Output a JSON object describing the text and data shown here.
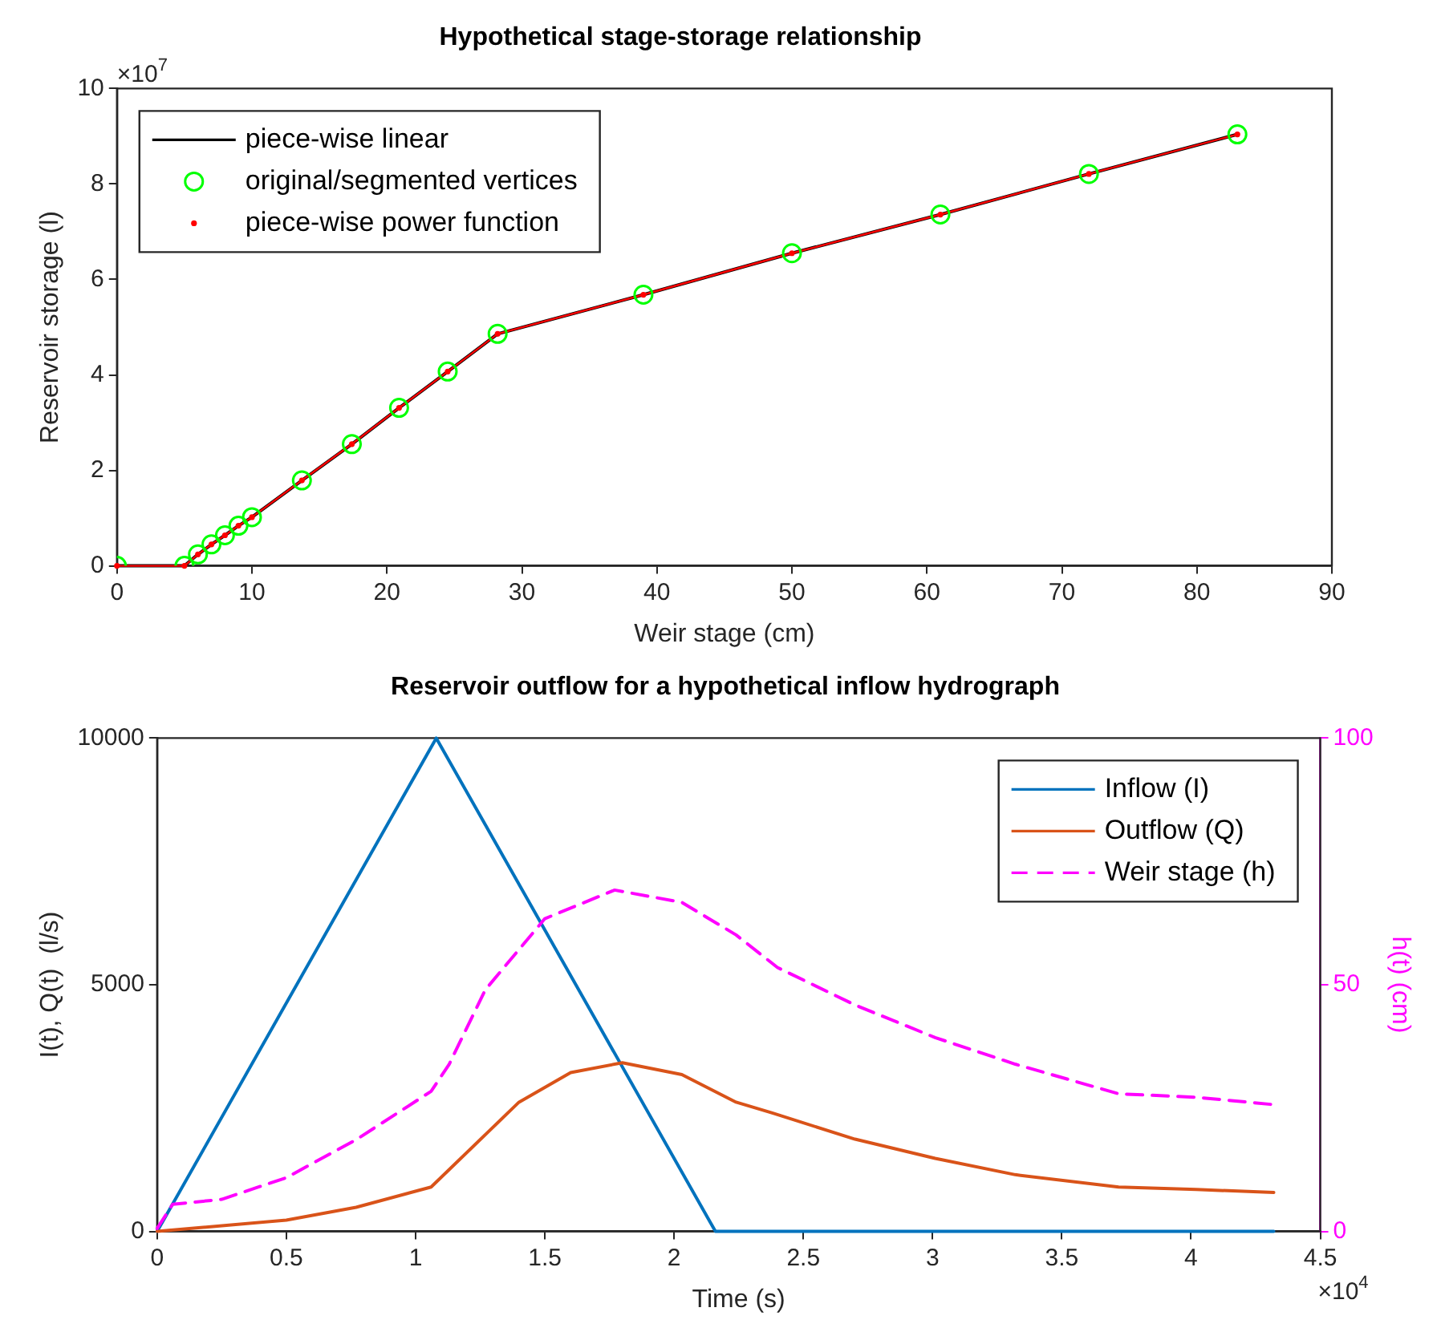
{
  "chart_data": [
    {
      "type": "line",
      "title": "Hypothetical stage-storage relationship",
      "xlabel": "Weir stage (cm)",
      "ylabel": "Reservoir storage (l)",
      "xlim": [
        0,
        90
      ],
      "xticks": [
        0,
        10,
        20,
        30,
        40,
        50,
        60,
        70,
        80,
        90
      ],
      "ylim": [
        0,
        10
      ],
      "yticks": [
        0,
        2,
        4,
        6,
        8,
        10
      ],
      "annotations": [
        "×10$^{7}$"
      ],
      "legend": "top left",
      "series": [
        {
          "name": "piece-wise linear",
          "color": "#000000",
          "marker": "none",
          "x": [
            0,
            5,
            6,
            7,
            8,
            9,
            10,
            13.7,
            17.4,
            20.9,
            24.5,
            28.2,
            39,
            50,
            61,
            72,
            83
          ],
          "values": [
            0,
            0,
            0.24,
            0.45,
            0.64,
            0.84,
            1.02,
            1.79,
            2.55,
            3.31,
            4.07,
            4.86,
            5.68,
            6.55,
            7.36,
            8.21,
            9.04
          ]
        },
        {
          "name": "original/segmented vertices",
          "type": "scatter",
          "color": "#00ff00",
          "marker": "circle",
          "x": [
            0,
            5,
            6,
            7,
            8,
            9,
            10,
            13.7,
            17.4,
            20.9,
            24.5,
            28.2,
            39,
            50,
            61,
            72,
            83
          ],
          "values": [
            0,
            0,
            0.24,
            0.45,
            0.64,
            0.84,
            1.02,
            1.79,
            2.55,
            3.31,
            4.07,
            4.86,
            5.68,
            6.55,
            7.36,
            8.21,
            9.04
          ]
        },
        {
          "name": "piece-wise power function",
          "color": "#ff0000",
          "marker": "circle",
          "x": [
            0,
            5,
            6,
            7,
            8,
            9,
            10,
            13.7,
            17.4,
            20.9,
            24.5,
            28.2,
            39,
            50,
            61,
            72,
            83
          ],
          "values": [
            0,
            0,
            0.24,
            0.45,
            0.64,
            0.84,
            1.02,
            1.79,
            2.55,
            3.31,
            4.07,
            4.86,
            5.68,
            6.55,
            7.36,
            8.21,
            9.04
          ]
        }
      ]
    },
    {
      "type": "line",
      "title": "Reservoir outflow for a hypothetical inflow hydrograph",
      "xlabel": "Time (s)",
      "ylabel": "I(t), Q(t)  (l/s)",
      "y2label": "h(t) (cm)",
      "xlim": [
        0,
        4.5
      ],
      "xticks": [
        0,
        0.5,
        1,
        1.5,
        2,
        2.5,
        3,
        3.5,
        4,
        4.5
      ],
      "ylim": [
        0,
        10000
      ],
      "yticks": [
        0,
        5000,
        10000
      ],
      "y2lim": [
        0,
        100
      ],
      "y2ticks": [
        0,
        50,
        100
      ],
      "annotations": [
        "×10$^{4}$"
      ],
      "legend": "top right",
      "series": [
        {
          "name": "Inflow (I)",
          "color": "#0072bd",
          "x": [
            0,
            1.08,
            2.16,
            4.32
          ],
          "values": [
            0,
            10000,
            0,
            0
          ]
        },
        {
          "name": "Outflow (Q)",
          "color": "#d95319",
          "x": [
            0,
            0.5,
            0.77,
            1.06,
            1.4,
            1.6,
            1.8,
            2.03,
            2.24,
            2.38,
            2.7,
            3.01,
            3.32,
            3.72,
            4.02,
            4.32
          ],
          "values": [
            0,
            230,
            490,
            900,
            2620,
            3220,
            3420,
            3180,
            2620,
            2400,
            1870,
            1480,
            1150,
            900,
            850,
            790
          ]
        },
        {
          "name": "Weir stage (h)",
          "color": "#ff00ff",
          "line_style": "dashed",
          "axis": "y2",
          "x": [
            0,
            0.06,
            0.25,
            0.5,
            0.77,
            1.06,
            1.13,
            1.27,
            1.5,
            1.77,
            2.03,
            2.24,
            2.4,
            2.7,
            3.01,
            3.32,
            3.72,
            4.02,
            4.32
          ],
          "values": [
            0.6,
            5.5,
            6.5,
            10.9,
            18.6,
            28.4,
            33.9,
            49,
            63.4,
            69.2,
            66.7,
            60.1,
            53.5,
            45.9,
            39.3,
            33.9,
            27.9,
            27.2,
            25.7
          ]
        }
      ]
    }
  ]
}
